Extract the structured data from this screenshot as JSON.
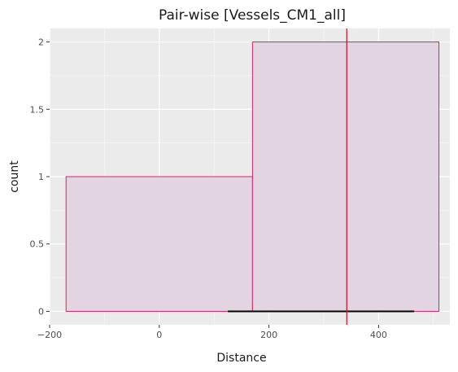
{
  "chart_data": {
    "type": "histogram",
    "title": "Pair-wise [Vessels_CM1_all]",
    "xlabel": "Distance",
    "ylabel": "count",
    "xlim": [
      -200,
      530
    ],
    "ylim": [
      -0.1,
      2.1
    ],
    "x_ticks": [
      -200,
      0,
      200,
      400
    ],
    "x_tick_labels": [
      "−200",
      "0",
      "200",
      "400"
    ],
    "y_ticks": [
      0,
      0.5,
      1,
      1.5,
      2
    ],
    "y_tick_labels": [
      "0",
      "0.5",
      "1",
      "1.5",
      "2"
    ],
    "bins": [
      {
        "x0": -170,
        "x1": 170,
        "count": 1
      },
      {
        "x0": 170,
        "x1": 510,
        "count": 2
      }
    ],
    "vline": {
      "x": 342
    },
    "segment": {
      "x0": 125,
      "x1": 465,
      "y": 0
    },
    "grid": true,
    "colors": {
      "panel_bg": "#ebebeb",
      "grid": "#ffffff",
      "bar_fill": "#e2d4e0",
      "bar_stroke": "#d6226b",
      "vline": "#c8102e",
      "segment": "#000000"
    }
  }
}
